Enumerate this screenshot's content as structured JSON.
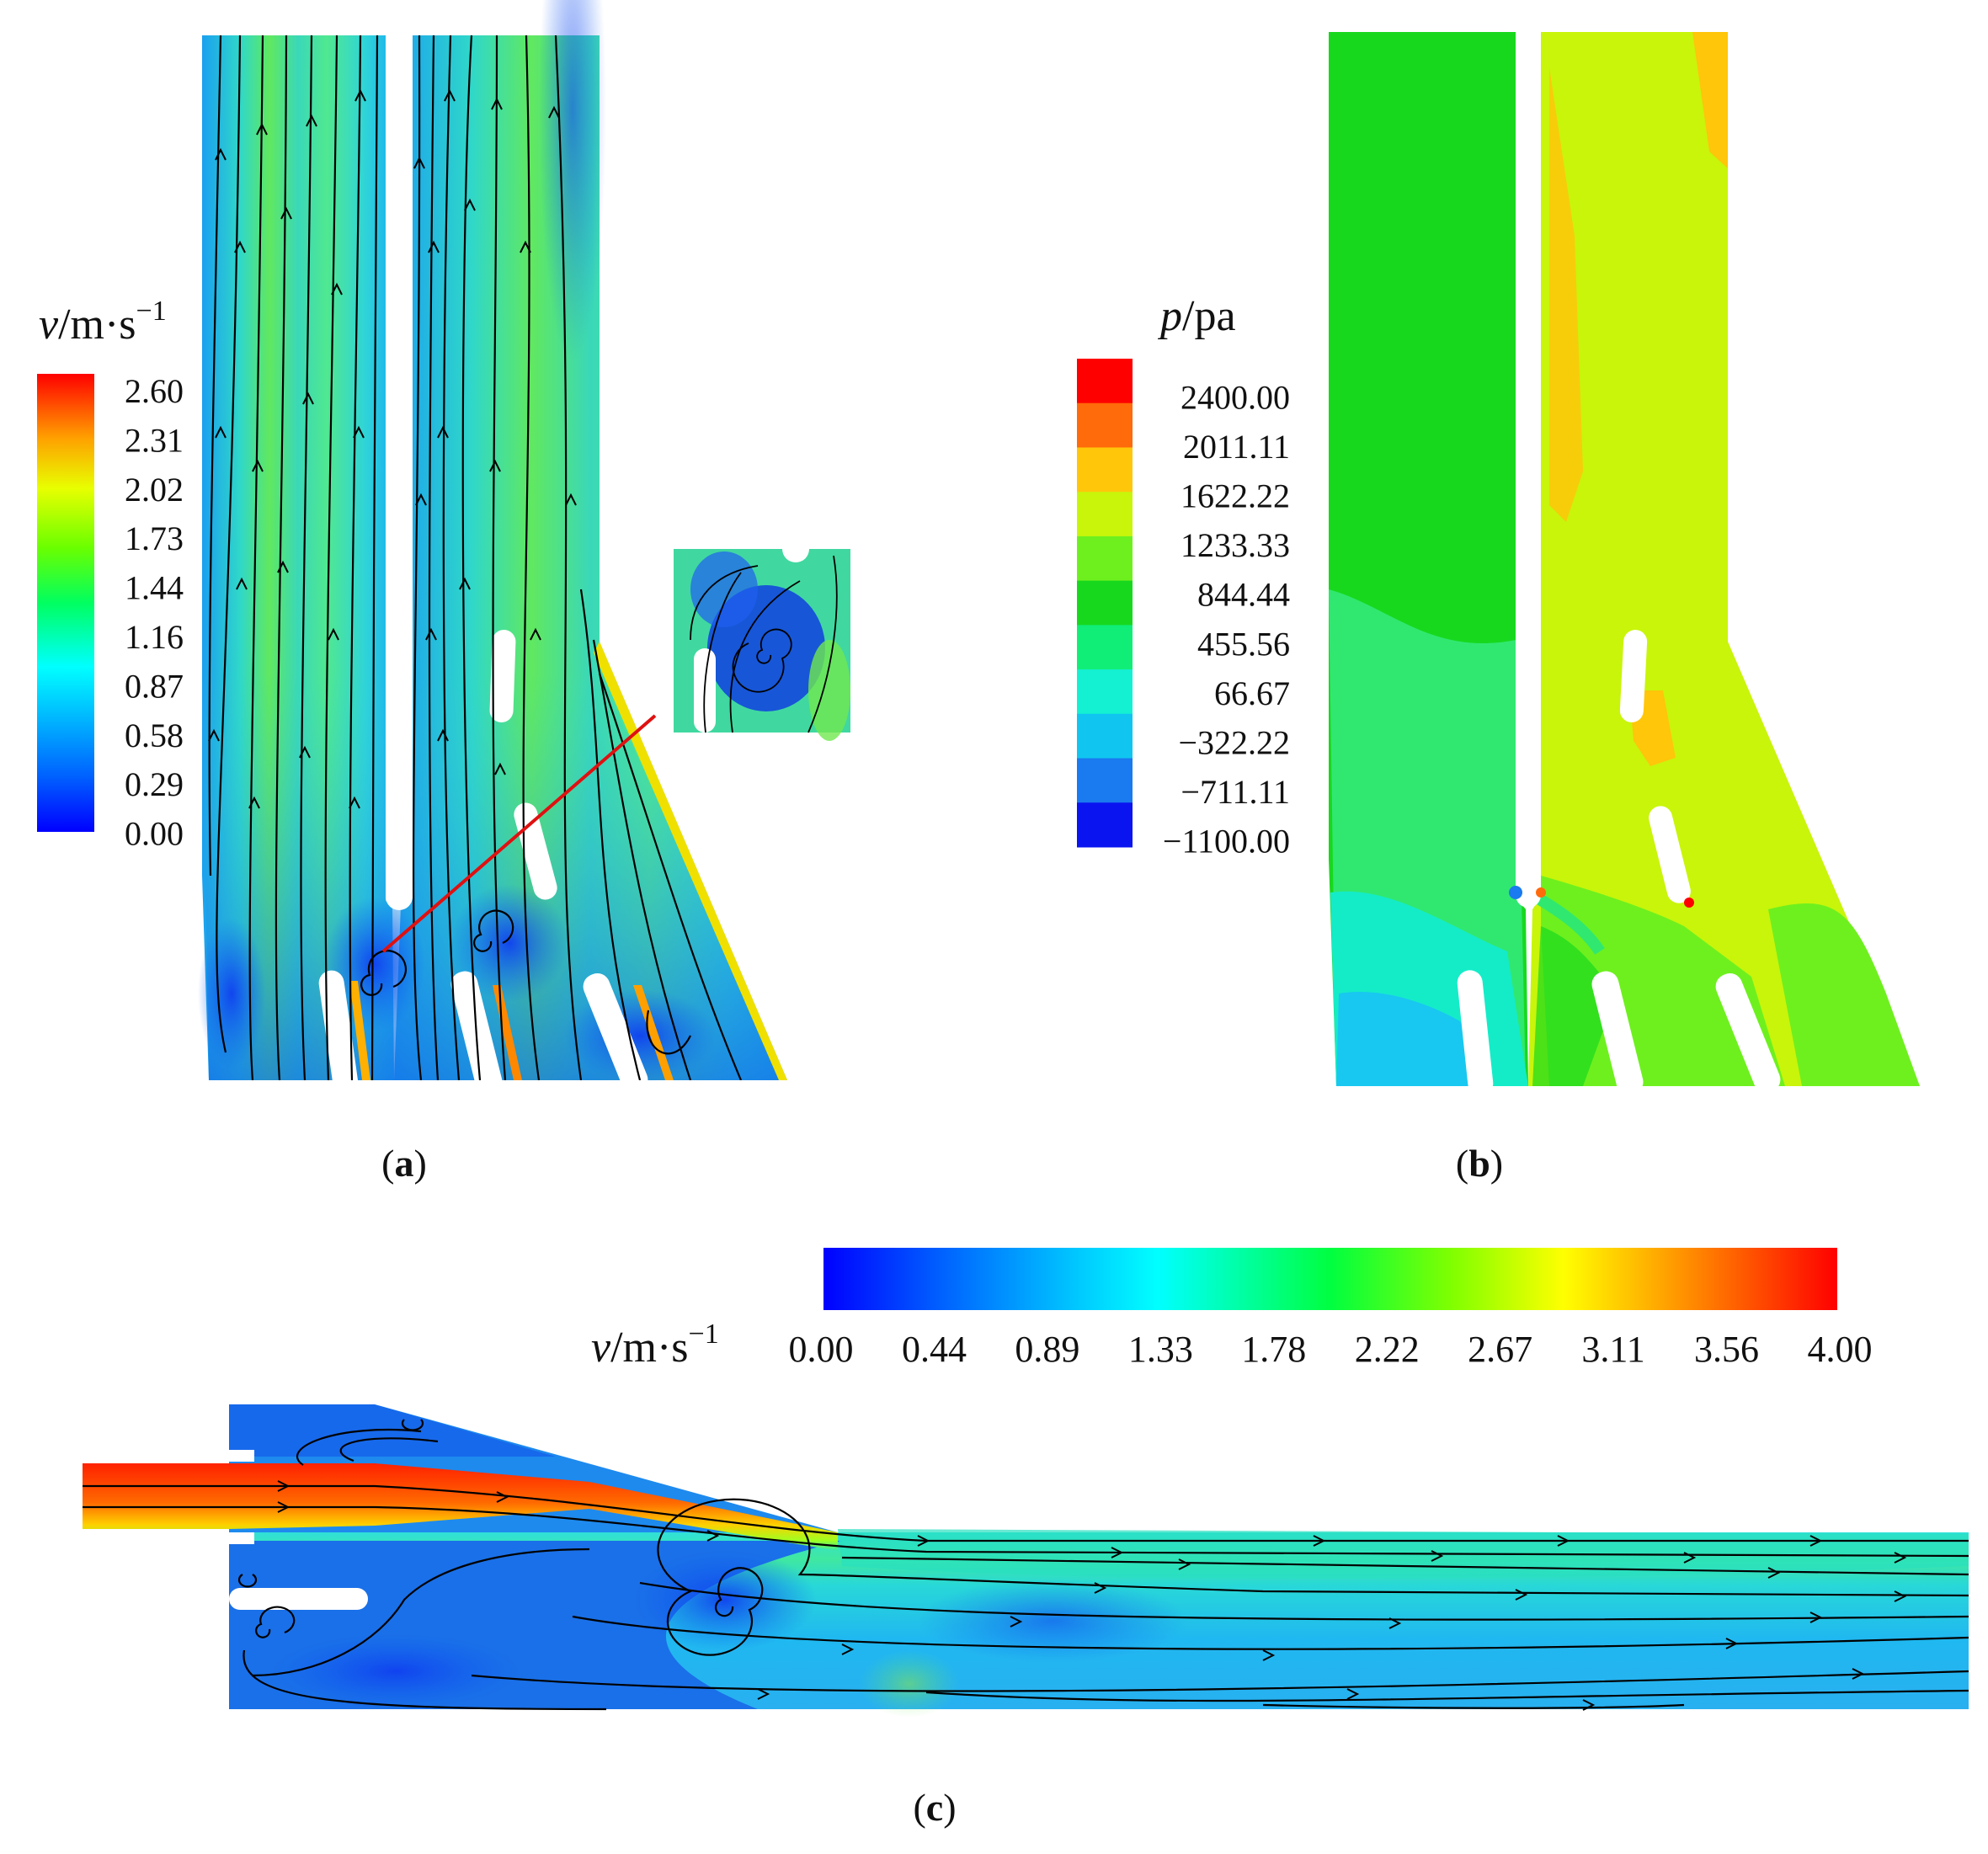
{
  "panel_a": {
    "caption": "a",
    "legend_title": {
      "var": "v",
      "unit": "/m·s",
      "sup": "−1"
    },
    "legend_ticks": [
      "2.60",
      "2.31",
      "2.02",
      "1.73",
      "1.44",
      "1.16",
      "0.87",
      "0.58",
      "0.29",
      "0.00"
    ]
  },
  "panel_b": {
    "caption": "b",
    "legend_title": {
      "var": "p",
      "unit": "/pa"
    },
    "legend_ticks": [
      "2400.00",
      "2011.11",
      "1622.22",
      "1233.33",
      "844.44",
      "455.56",
      "66.67",
      "−322.22",
      "−711.11",
      "−1100.00"
    ],
    "legend_colors": [
      "#ff0000",
      "#ff6a0a",
      "#ffc60a",
      "#c8f50a",
      "#6ef01e",
      "#18d81e",
      "#10ee78",
      "#14f0d2",
      "#10c6f0",
      "#1a7af0",
      "#0a14f0"
    ]
  },
  "panel_c": {
    "caption": "c",
    "legend_title": {
      "var": "v",
      "unit": "/m·s",
      "sup": "−1"
    },
    "legend_ticks": [
      "0.00",
      "0.44",
      "0.89",
      "1.33",
      "1.78",
      "2.22",
      "2.67",
      "3.11",
      "3.56",
      "4.00"
    ]
  },
  "colormap": {
    "jet": [
      "#0000ff",
      "#00a8ff",
      "#00ffff",
      "#00ff66",
      "#66ff00",
      "#ffff00",
      "#ff8c00",
      "#ff0000"
    ],
    "background_low": "#1e8aee",
    "background_mid": "#2ce0d6",
    "high": "#ff2200"
  }
}
